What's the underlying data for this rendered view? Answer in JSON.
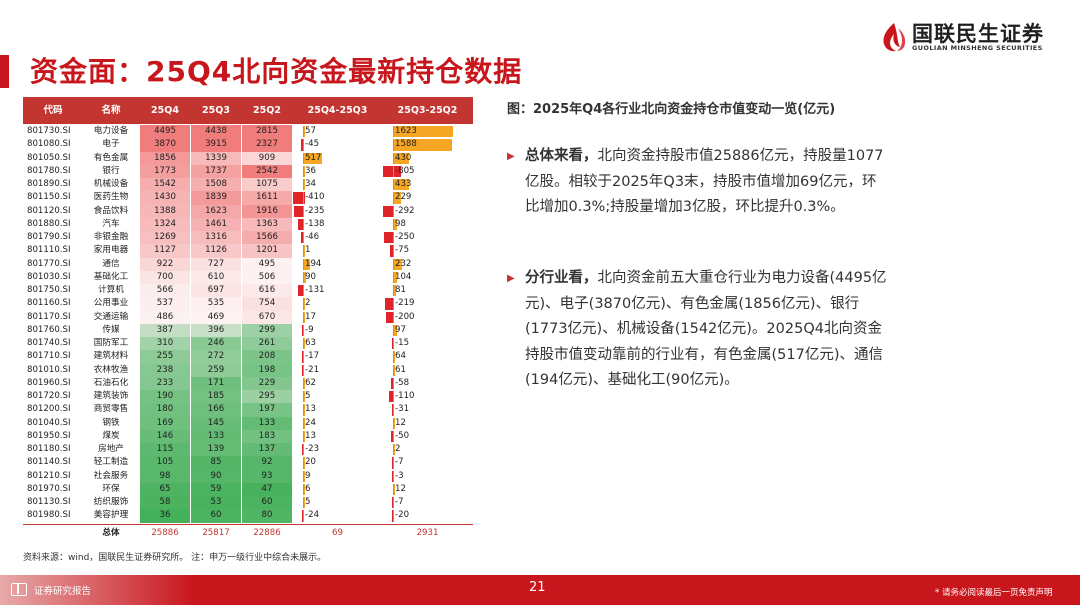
{
  "header": {
    "title": "资金面：25Q4北向资金最新持仓数据",
    "logo_cn": "国联民生证券",
    "logo_en": "GUOLIAN MINSHENG SECURITIES"
  },
  "table": {
    "columns": [
      "代码",
      "名称",
      "25Q4",
      "25Q3",
      "25Q2",
      "25Q4-25Q3",
      "25Q3-25Q2"
    ],
    "total_label": "总体",
    "totals": {
      "q4": "25886",
      "q3": "25817",
      "q2": "22886",
      "d43": "69",
      "d32": "2931"
    }
  },
  "chart_data": {
    "type": "table",
    "unit": "亿元",
    "columns": [
      "代码",
      "名称",
      "25Q4",
      "25Q3",
      "25Q2",
      "25Q4-25Q3",
      "25Q3-25Q2"
    ],
    "rows": [
      {
        "code": "801730.SI",
        "name": "电力设备",
        "q4": 4495,
        "q3": 4438,
        "q2": 2815,
        "d43": 57,
        "d32": 1623
      },
      {
        "code": "801080.SI",
        "name": "电子",
        "q4": 3870,
        "q3": 3915,
        "q2": 2327,
        "d43": -45,
        "d32": 1588
      },
      {
        "code": "801050.SI",
        "name": "有色金属",
        "q4": 1856,
        "q3": 1339,
        "q2": 909,
        "d43": 517,
        "d32": 430
      },
      {
        "code": "801780.SI",
        "name": "银行",
        "q4": 1773,
        "q3": 1737,
        "q2": 2542,
        "d43": 36,
        "d32": -805
      },
      {
        "code": "801890.SI",
        "name": "机械设备",
        "q4": 1542,
        "q3": 1508,
        "q2": 1075,
        "d43": 34,
        "d32": 433
      },
      {
        "code": "801150.SI",
        "name": "医药生物",
        "q4": 1430,
        "q3": 1839,
        "q2": 1611,
        "d43": -410,
        "d32": 229
      },
      {
        "code": "801120.SI",
        "name": "食品饮料",
        "q4": 1388,
        "q3": 1623,
        "q2": 1916,
        "d43": -235,
        "d32": -292
      },
      {
        "code": "801880.SI",
        "name": "汽车",
        "q4": 1324,
        "q3": 1461,
        "q2": 1363,
        "d43": -138,
        "d32": 98
      },
      {
        "code": "801790.SI",
        "name": "非银金融",
        "q4": 1269,
        "q3": 1316,
        "q2": 1566,
        "d43": -46,
        "d32": -250
      },
      {
        "code": "801110.SI",
        "name": "家用电器",
        "q4": 1127,
        "q3": 1126,
        "q2": 1201,
        "d43": 1,
        "d32": -75
      },
      {
        "code": "801770.SI",
        "name": "通信",
        "q4": 922,
        "q3": 727,
        "q2": 495,
        "d43": 194,
        "d32": 232
      },
      {
        "code": "801030.SI",
        "name": "基础化工",
        "q4": 700,
        "q3": 610,
        "q2": 506,
        "d43": 90,
        "d32": 104
      },
      {
        "code": "801750.SI",
        "name": "计算机",
        "q4": 566,
        "q3": 697,
        "q2": 616,
        "d43": -131,
        "d32": 81
      },
      {
        "code": "801160.SI",
        "name": "公用事业",
        "q4": 537,
        "q3": 535,
        "q2": 754,
        "d43": 2,
        "d32": -219
      },
      {
        "code": "801170.SI",
        "name": "交通运输",
        "q4": 486,
        "q3": 469,
        "q2": 670,
        "d43": 17,
        "d32": -200
      },
      {
        "code": "801760.SI",
        "name": "传媒",
        "q4": 387,
        "q3": 396,
        "q2": 299,
        "d43": -9,
        "d32": 97
      },
      {
        "code": "801740.SI",
        "name": "国防军工",
        "q4": 310,
        "q3": 246,
        "q2": 261,
        "d43": 63,
        "d32": -15
      },
      {
        "code": "801710.SI",
        "name": "建筑材料",
        "q4": 255,
        "q3": 272,
        "q2": 208,
        "d43": -17,
        "d32": 64
      },
      {
        "code": "801010.SI",
        "name": "农林牧渔",
        "q4": 238,
        "q3": 259,
        "q2": 198,
        "d43": -21,
        "d32": 61
      },
      {
        "code": "801960.SI",
        "name": "石油石化",
        "q4": 233,
        "q3": 171,
        "q2": 229,
        "d43": 62,
        "d32": -58
      },
      {
        "code": "801720.SI",
        "name": "建筑装饰",
        "q4": 190,
        "q3": 185,
        "q2": 295,
        "d43": 5,
        "d32": -110
      },
      {
        "code": "801200.SI",
        "name": "商贸零售",
        "q4": 180,
        "q3": 166,
        "q2": 197,
        "d43": 13,
        "d32": -31
      },
      {
        "code": "801040.SI",
        "name": "钢铁",
        "q4": 169,
        "q3": 145,
        "q2": 133,
        "d43": 24,
        "d32": 12
      },
      {
        "code": "801950.SI",
        "name": "煤炭",
        "q4": 146,
        "q3": 133,
        "q2": 183,
        "d43": 13,
        "d32": -50
      },
      {
        "code": "801180.SI",
        "name": "房地产",
        "q4": 115,
        "q3": 139,
        "q2": 137,
        "d43": -23,
        "d32": 2
      },
      {
        "code": "801140.SI",
        "name": "轻工制造",
        "q4": 105,
        "q3": 85,
        "q2": 92,
        "d43": 20,
        "d32": -7
      },
      {
        "code": "801210.SI",
        "name": "社会服务",
        "q4": 98,
        "q3": 90,
        "q2": 93,
        "d43": 9,
        "d32": -3
      },
      {
        "code": "801970.SI",
        "name": "环保",
        "q4": 65,
        "q3": 59,
        "q2": 47,
        "d43": 6,
        "d32": 12
      },
      {
        "code": "801130.SI",
        "name": "纺织服饰",
        "q4": 58,
        "q3": 53,
        "q2": 60,
        "d43": 5,
        "d32": -7
      },
      {
        "code": "801980.SI",
        "name": "美容护理",
        "q4": 36,
        "q3": 60,
        "q2": 80,
        "d43": -24,
        "d32": -20
      }
    ],
    "colors": {
      "hot": "#f07c7c",
      "mid": "#fdf3f3",
      "cold": "#45b05b",
      "neg_bar": "#e0252a",
      "pos_bar": "#f5a623"
    }
  },
  "right": {
    "subtitle": "图：2025年Q4各行业北向资金持仓市值变动一览(亿元)",
    "bullet1_bold": "总体来看，",
    "bullet1_text": "北向资金持股市值25886亿元，持股量1077亿股。相较于2025年Q3末，持股市值增加69亿元，环比增加0.3%;持股量增加3亿股，环比提升0.3%。",
    "bullet2_bold": "分行业看，",
    "bullet2_text": "北向资金前五大重仓行业为电力设备(4495亿元)、电子(3870亿元)、有色金属(1856亿元)、银行(1773亿元)、机械设备(1542亿元)。2025Q4北向资金持股市值变动靠前的行业有，有色金属(517亿元)、通信(194亿元)、基础化工(90亿元)。"
  },
  "source": "资料来源：wind，国联民生证券研究所。 注：申万一级行业中综合未展示。",
  "footer": {
    "label": "证券研究报告",
    "page": "21",
    "disclaimer": "* 请务必阅读最后一页免责声明"
  }
}
